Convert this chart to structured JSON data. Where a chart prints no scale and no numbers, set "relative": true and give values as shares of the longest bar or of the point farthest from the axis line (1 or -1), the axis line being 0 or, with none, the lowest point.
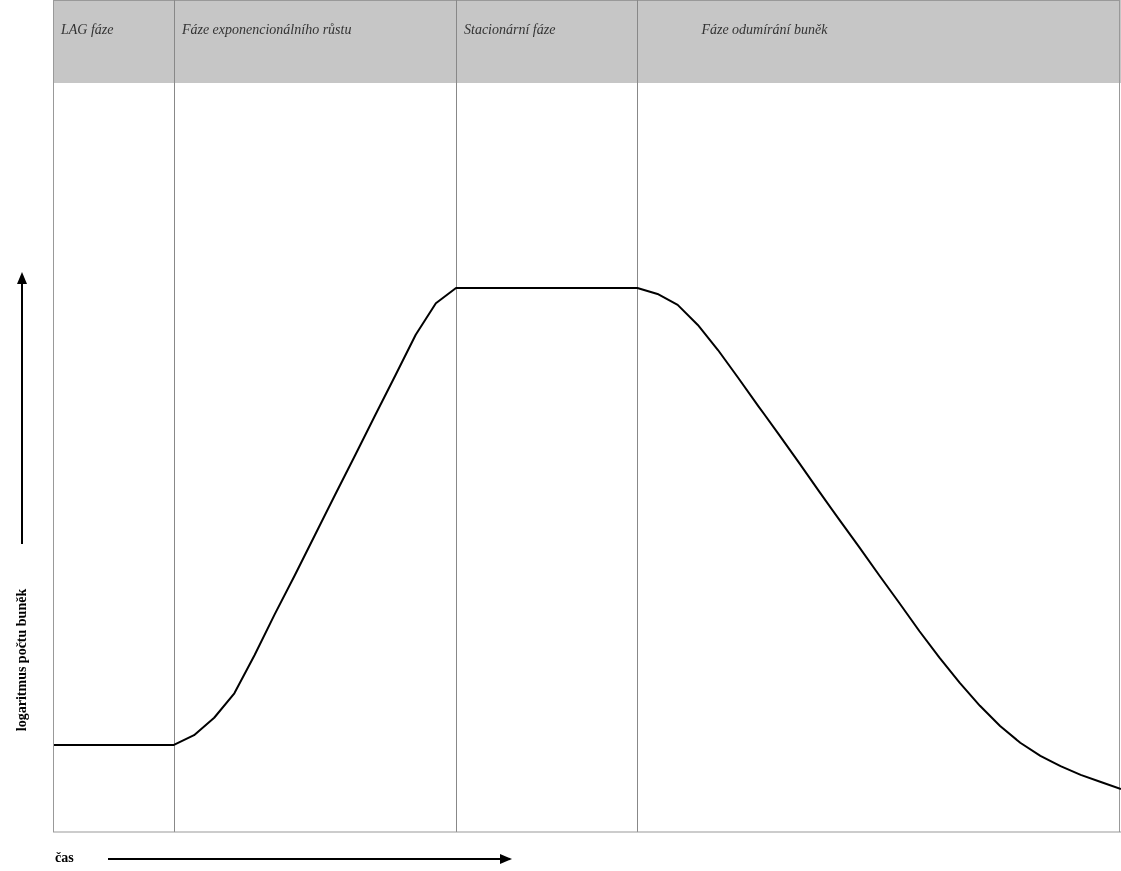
{
  "chart_data": {
    "type": "line",
    "relative": true,
    "xlabel": "čas",
    "ylabel": "logaritmus počtu buněk",
    "color": "#000000",
    "annotations": [
      "LAG fáze",
      "Fáze exponencionálního růstu",
      "Stacionární fáze",
      "Fáze odumírání buněk"
    ],
    "categories": [
      null,
      null,
      null,
      null,
      null,
      null,
      null,
      null,
      null,
      null,
      null,
      null,
      null,
      null,
      null,
      null,
      null,
      null,
      null,
      null,
      null,
      null,
      null,
      null,
      null,
      null,
      null,
      null,
      null,
      null,
      null,
      null,
      null,
      null,
      null,
      null,
      null,
      null,
      null,
      null,
      null,
      null,
      null,
      null,
      null,
      null,
      null,
      null,
      null,
      null,
      null,
      null,
      null,
      null
    ],
    "values": [
      0.16,
      0.16,
      0.16,
      0.16,
      0.16,
      0.16,
      0.16,
      0.178,
      0.21,
      0.255,
      0.325,
      0.4,
      0.472,
      0.546,
      0.62,
      0.693,
      0.767,
      0.84,
      0.914,
      0.972,
      1,
      1,
      1,
      1,
      1,
      1,
      1,
      1,
      1,
      1,
      0.989,
      0.969,
      0.932,
      0.886,
      0.835,
      0.783,
      0.732,
      0.68,
      0.627,
      0.575,
      0.524,
      0.472,
      0.421,
      0.369,
      0.32,
      0.274,
      0.232,
      0.195,
      0.164,
      0.14,
      0.121,
      0.105,
      0.092,
      0.079
    ]
  }
}
